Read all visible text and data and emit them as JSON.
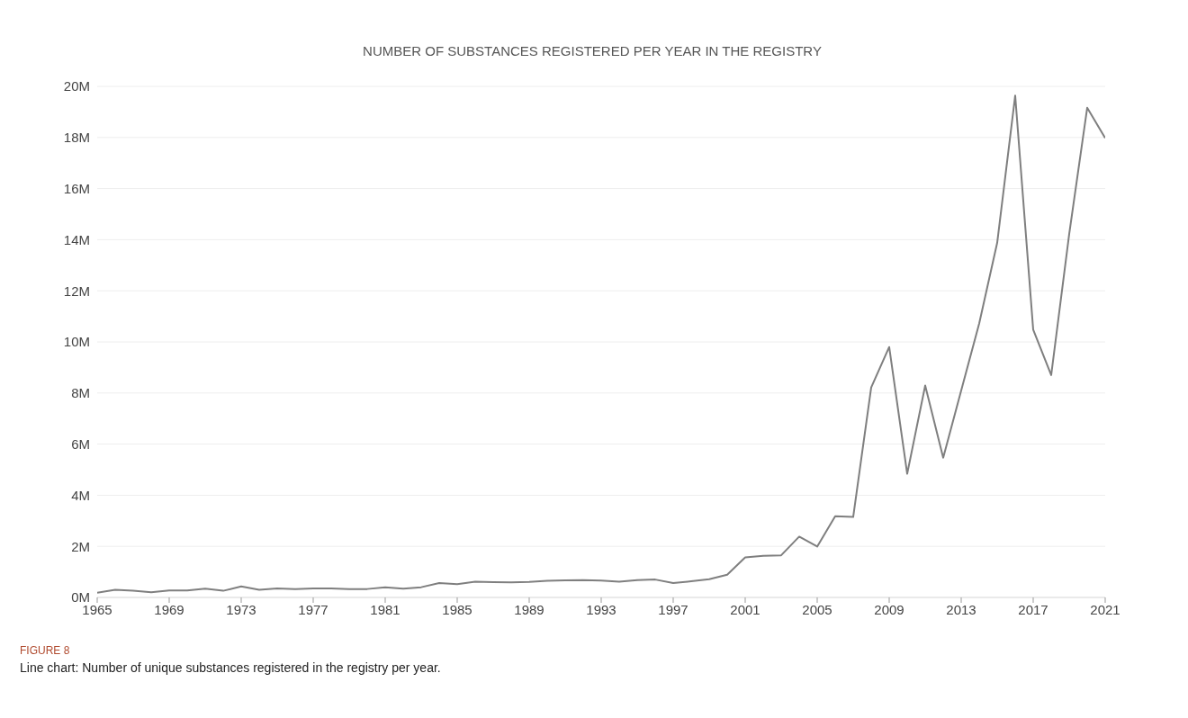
{
  "chart_data": {
    "type": "line",
    "title": "NUMBER OF SUBSTANCES REGISTERED PER YEAR IN THE REGISTRY",
    "x": [
      1965,
      1966,
      1967,
      1968,
      1969,
      1970,
      1971,
      1972,
      1973,
      1974,
      1975,
      1976,
      1977,
      1978,
      1979,
      1980,
      1981,
      1982,
      1983,
      1984,
      1985,
      1986,
      1987,
      1988,
      1989,
      1990,
      1991,
      1992,
      1993,
      1994,
      1995,
      1996,
      1997,
      1998,
      1999,
      2000,
      2001,
      2002,
      2003,
      2004,
      2005,
      2006,
      2007,
      2008,
      2009,
      2010,
      2011,
      2012,
      2013,
      2014,
      2015,
      2016,
      2017,
      2018,
      2019,
      2020,
      2021
    ],
    "series": [
      {
        "color": "#7f7f7f",
        "values": [
          0.18,
          0.3,
          0.26,
          0.2,
          0.27,
          0.27,
          0.34,
          0.26,
          0.43,
          0.3,
          0.35,
          0.33,
          0.35,
          0.35,
          0.33,
          0.33,
          0.4,
          0.34,
          0.4,
          0.56,
          0.52,
          0.62,
          0.6,
          0.59,
          0.61,
          0.65,
          0.67,
          0.68,
          0.66,
          0.62,
          0.68,
          0.7,
          0.56,
          0.63,
          0.71,
          0.89,
          1.57,
          1.63,
          1.65,
          2.38,
          1.99,
          3.18,
          3.15,
          8.22,
          9.8,
          4.84,
          8.29,
          5.47,
          8.1,
          10.72,
          13.88,
          19.64,
          10.48,
          8.7,
          14.22,
          19.16,
          17.98
        ]
      }
    ],
    "xlim": [
      1965,
      2021
    ],
    "xticks": [
      1965,
      1969,
      1973,
      1977,
      1981,
      1985,
      1989,
      1993,
      1997,
      2001,
      2005,
      2009,
      2013,
      2017,
      2021
    ],
    "ylim": [
      0,
      20
    ],
    "yticks": [
      {
        "value": 0,
        "label": "0M"
      },
      {
        "value": 2,
        "label": "2M"
      },
      {
        "value": 4,
        "label": "4M"
      },
      {
        "value": 6,
        "label": "6M"
      },
      {
        "value": 8,
        "label": "8M"
      },
      {
        "value": 10,
        "label": "10M"
      },
      {
        "value": 12,
        "label": "12M"
      },
      {
        "value": 14,
        "label": "14M"
      },
      {
        "value": 16,
        "label": "16M"
      },
      {
        "value": 18,
        "label": "18M"
      },
      {
        "value": 20,
        "label": "20M"
      }
    ],
    "grid": "y",
    "marker": "none",
    "line_style": "solid",
    "annotations": [
      "FIGURE 8",
      "Line chart: Number of unique substances registered in the registry per year."
    ]
  }
}
